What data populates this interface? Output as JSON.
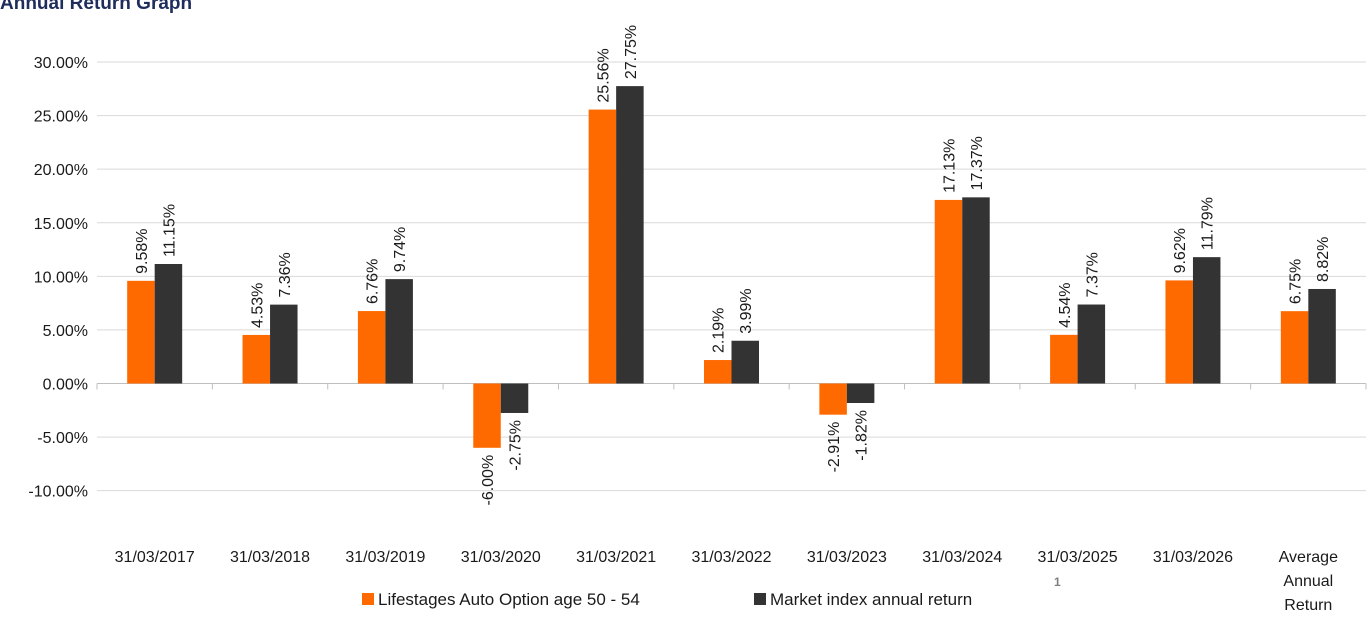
{
  "title": "Annual Return Graph",
  "footnote_marker": "1",
  "chart_data": {
    "type": "bar",
    "categories": [
      "31/03/2017",
      "31/03/2018",
      "31/03/2019",
      "31/03/2020",
      "31/03/2021",
      "31/03/2022",
      "31/03/2023",
      "31/03/2024",
      "31/03/2025",
      "31/03/2026",
      "Average Annual Return"
    ],
    "series": [
      {
        "name": "Lifestages Auto Option age 50 - 54",
        "color": "#ff6a00",
        "values": [
          9.58,
          4.53,
          6.76,
          -6.0,
          25.56,
          2.19,
          -2.91,
          17.13,
          4.54,
          9.62,
          6.75
        ],
        "labels": [
          "9.58%",
          "4.53%",
          "6.76%",
          "-6.00%",
          "25.56%",
          "2.19%",
          "-2.91%",
          "17.13%",
          "4.54%",
          "9.62%",
          "6.75%"
        ]
      },
      {
        "name": "Market index annual return",
        "color": "#333333",
        "values": [
          11.15,
          7.36,
          9.74,
          -2.75,
          27.75,
          3.99,
          -1.82,
          17.37,
          7.37,
          11.79,
          8.82
        ],
        "labels": [
          "11.15%",
          "7.36%",
          "9.74%",
          "-2.75%",
          "27.75%",
          "3.99%",
          "-1.82%",
          "17.37%",
          "7.37%",
          "11.79%",
          "8.82%"
        ]
      }
    ],
    "y_ticks": [
      "30.00%",
      "25.00%",
      "20.00%",
      "15.00%",
      "10.00%",
      "5.00%",
      "0.00%",
      "-5.00%",
      "-10.00%"
    ],
    "y_tick_values": [
      30,
      25,
      20,
      15,
      10,
      5,
      0,
      -5,
      -10
    ],
    "ylim": [
      -10,
      30
    ],
    "grid": true,
    "legend_position": "bottom",
    "xlabel": "",
    "ylabel": ""
  }
}
